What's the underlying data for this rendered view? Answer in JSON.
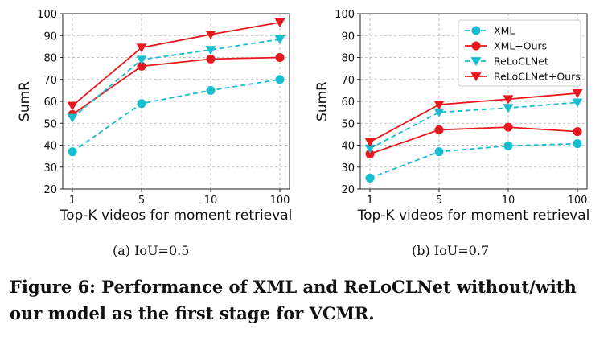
{
  "chart_data": [
    {
      "type": "line",
      "subcaption": "(a)  IoU=0.5",
      "categories": [
        "1",
        "5",
        "10",
        "100"
      ],
      "xlabel": "Top-K videos for moment retrieval",
      "ylabel": "SumR",
      "ylim": [
        20,
        100
      ],
      "yticks": [
        20,
        30,
        40,
        50,
        60,
        70,
        80,
        90,
        100
      ],
      "grid": true,
      "series": [
        {
          "name": "XML",
          "values": [
            37,
            59,
            65,
            70
          ]
        },
        {
          "name": "XML+Ours",
          "values": [
            54,
            76,
            79.3,
            80
          ]
        },
        {
          "name": "ReLoCLNet",
          "values": [
            52.5,
            79,
            83.5,
            88.3
          ]
        },
        {
          "name": "ReLoCLNet+Ours",
          "values": [
            58,
            84.5,
            90.5,
            96
          ]
        }
      ]
    },
    {
      "type": "line",
      "subcaption": "(b)  IoU=0.7",
      "categories": [
        "1",
        "5",
        "10",
        "100"
      ],
      "xlabel": "Top-K videos for moment retrieval",
      "ylabel": "SumR",
      "ylim": [
        20,
        100
      ],
      "yticks": [
        20,
        30,
        40,
        50,
        60,
        70,
        80,
        90,
        100
      ],
      "grid": true,
      "legend": "top-right",
      "series": [
        {
          "name": "XML",
          "values": [
            25,
            37,
            39.7,
            40.7
          ]
        },
        {
          "name": "XML+Ours",
          "values": [
            36,
            47,
            48.2,
            46.2
          ]
        },
        {
          "name": "ReLoCLNet",
          "values": [
            38.5,
            55,
            57,
            59.5
          ]
        },
        {
          "name": "ReLoCLNet+Ours",
          "values": [
            41.5,
            58.5,
            61,
            63.7
          ]
        }
      ]
    }
  ],
  "series_style": [
    {
      "color": "#17becf",
      "dash": true,
      "marker": "circle"
    },
    {
      "color": "#e8191e",
      "dash": false,
      "marker": "circle"
    },
    {
      "color": "#17becf",
      "dash": true,
      "marker": "triangle-down"
    },
    {
      "color": "#e8191e",
      "dash": false,
      "marker": "triangle-down"
    }
  ],
  "caption": "Figure 6: Performance of XML and ReLoCLNet without/with our model as the first stage for VCMR."
}
